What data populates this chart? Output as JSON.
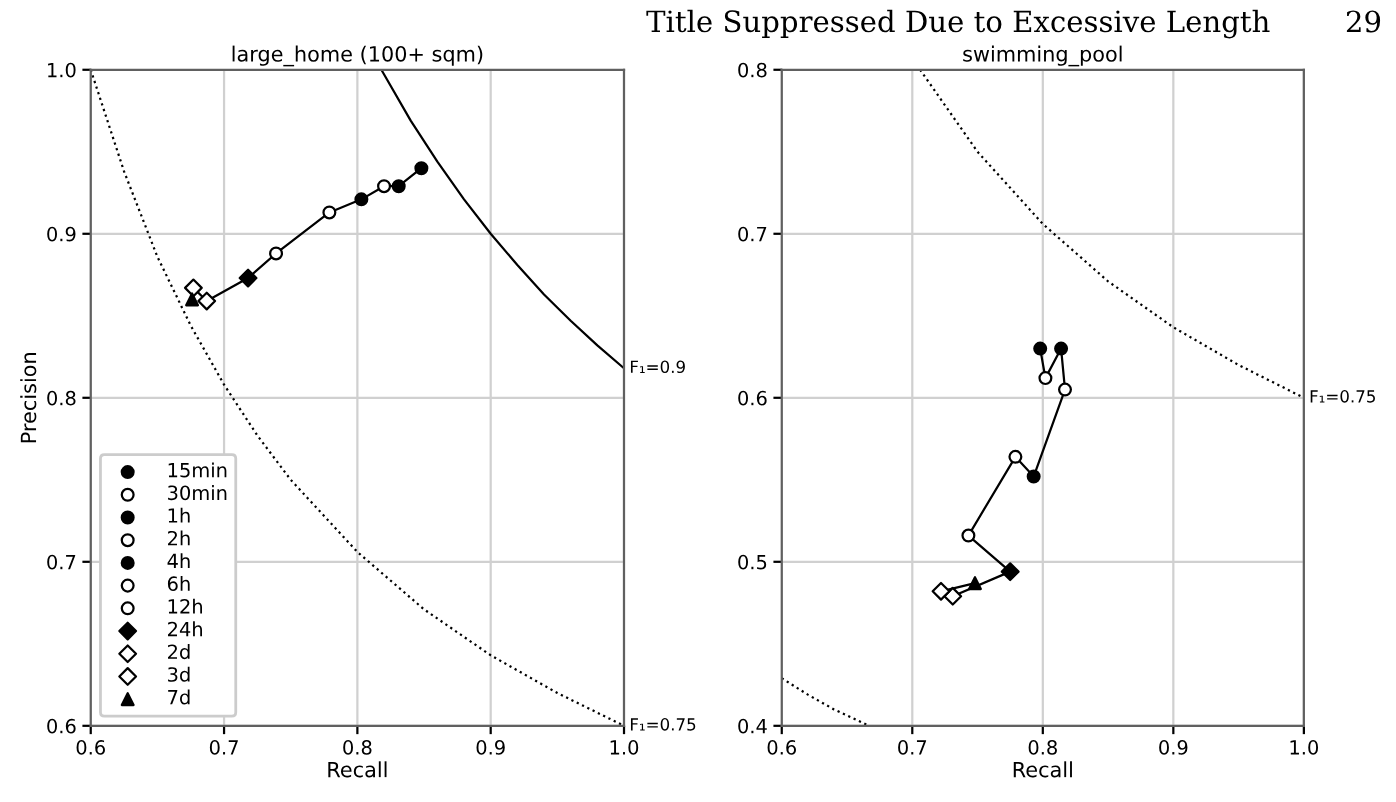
{
  "chart_data": [
    {
      "type": "scatter",
      "title": "large_home (100+ sqm)",
      "xlabel": "Recall",
      "ylabel": "Precision",
      "annotations": [
        "Title Suppressed Due to Excessive Length",
        "29"
      ],
      "xlim": [
        0.6,
        1.0
      ],
      "xticks": [
        0.6,
        0.7,
        0.8,
        0.9,
        {
          "value": 1.0,
          "label": "1.0"
        }
      ],
      "ylim": [
        0.6,
        1.0
      ],
      "yticks": [
        0.6,
        0.7,
        0.8,
        0.9,
        {
          "value": 1.0,
          "label": "1.0"
        }
      ],
      "grid": true,
      "legend": "bottom left",
      "series": [
        {
          "type": "line",
          "name": "F₁=0.9",
          "color": "#000000",
          "line_style": "solid",
          "x": [
            0.818,
            0.84,
            0.86,
            0.88,
            0.9,
            0.92,
            0.94,
            0.96,
            0.98,
            1.0
          ],
          "values": [
            1.0,
            0.969,
            0.944,
            0.921,
            0.9,
            0.881,
            0.863,
            0.847,
            0.832,
            0.818
          ]
        },
        {
          "type": "line",
          "name": "F₁=0.75",
          "color": "#000000",
          "line_style": "dotted",
          "x": [
            0.6,
            0.625,
            0.65,
            0.675,
            0.7,
            0.725,
            0.75,
            0.8,
            0.85,
            0.9,
            0.95,
            1.0
          ],
          "values": [
            1.0,
            0.938,
            0.886,
            0.844,
            0.808,
            0.777,
            0.75,
            0.706,
            0.671,
            0.643,
            0.62,
            0.6
          ]
        },
        {
          "type": "line",
          "color": "#000000",
          "line_style": "solid",
          "x": [
            0.848,
            0.831,
            0.82,
            0.803,
            0.779,
            0.739,
            0.718,
            0.687,
            0.677,
            0.676
          ],
          "values": [
            0.94,
            0.929,
            0.929,
            0.921,
            0.913,
            0.888,
            0.873,
            0.859,
            0.867,
            0.86
          ]
        },
        {
          "name": "15min",
          "color": "#000000",
          "marker": "circle",
          "x": [
            0.848
          ],
          "values": [
            0.94
          ]
        },
        {
          "name": "30min",
          "color": "#ffffff",
          "marker": "circle",
          "x": [
            null
          ],
          "values": [
            null
          ]
        },
        {
          "name": "1h",
          "color": "#000000",
          "marker": "circle",
          "x": [
            0.831
          ],
          "values": [
            0.929
          ]
        },
        {
          "name": "2h",
          "color": "#ffffff",
          "marker": "circle",
          "x": [
            0.82
          ],
          "values": [
            0.929
          ]
        },
        {
          "name": "4h",
          "color": "#000000",
          "marker": "circle",
          "x": [
            0.803
          ],
          "values": [
            0.921
          ]
        },
        {
          "name": "6h",
          "color": "#ffffff",
          "marker": "circle",
          "x": [
            0.779
          ],
          "values": [
            0.913
          ]
        },
        {
          "name": "12h",
          "color": "#ffffff",
          "marker": "circle",
          "x": [
            0.739
          ],
          "values": [
            0.888
          ]
        },
        {
          "name": "24h",
          "color": "#000000",
          "marker": "diamond",
          "x": [
            0.718
          ],
          "values": [
            0.873
          ]
        },
        {
          "name": "2d",
          "color": "#ffffff",
          "marker": "diamond",
          "x": [
            0.687
          ],
          "values": [
            0.859
          ]
        },
        {
          "name": "3d",
          "color": "#ffffff",
          "marker": "diamond",
          "x": [
            0.677
          ],
          "values": [
            0.867
          ]
        },
        {
          "name": "7d",
          "color": "#000000",
          "marker": "triangle",
          "x": [
            0.676
          ],
          "values": [
            0.86
          ]
        }
      ]
    },
    {
      "type": "scatter",
      "title": "swimming_pool",
      "xlabel": "Recall",
      "xlim": [
        0.6,
        1.0
      ],
      "xticks": [
        0.6,
        0.7,
        0.8,
        0.9,
        {
          "value": 1.0,
          "label": "1.0"
        }
      ],
      "ylim": [
        0.4,
        0.8
      ],
      "yticks": [
        0.4,
        0.5,
        0.6,
        0.7,
        0.8
      ],
      "grid": true,
      "series": [
        {
          "type": "line",
          "name": "F₁=0.75",
          "color": "#000000",
          "line_style": "dotted",
          "x": [
            0.706,
            0.75,
            0.8,
            0.85,
            0.9,
            0.95,
            1.0
          ],
          "values": [
            0.8,
            0.75,
            0.706,
            0.671,
            0.643,
            0.62,
            0.6
          ]
        },
        {
          "type": "line",
          "color": "#000000",
          "line_style": "dotted",
          "x": [
            0.6,
            0.62,
            0.64,
            0.667
          ],
          "values": [
            0.429,
            0.419,
            0.41,
            0.4
          ]
        },
        {
          "type": "line",
          "color": "#000000",
          "line_style": "solid",
          "x": [
            0.798,
            0.802,
            0.814,
            0.817,
            0.793,
            0.779,
            0.743,
            0.775,
            0.731,
            0.722,
            0.748
          ],
          "values": [
            0.63,
            0.612,
            0.63,
            0.605,
            0.552,
            0.564,
            0.516,
            0.494,
            0.479,
            0.482,
            0.487
          ]
        },
        {
          "color": "#000000",
          "marker": "circle",
          "x": [
            0.798
          ],
          "values": [
            0.63
          ]
        },
        {
          "color": "#ffffff",
          "marker": "circle",
          "x": [
            0.802
          ],
          "values": [
            0.612
          ]
        },
        {
          "color": "#000000",
          "marker": "circle",
          "x": [
            0.814
          ],
          "values": [
            0.63
          ]
        },
        {
          "color": "#ffffff",
          "marker": "circle",
          "x": [
            0.817
          ],
          "values": [
            0.605
          ]
        },
        {
          "color": "#000000",
          "marker": "circle",
          "x": [
            0.793
          ],
          "values": [
            0.552
          ]
        },
        {
          "color": "#ffffff",
          "marker": "circle",
          "x": [
            0.779
          ],
          "values": [
            0.564
          ]
        },
        {
          "color": "#ffffff",
          "marker": "circle",
          "x": [
            0.743
          ],
          "values": [
            0.516
          ]
        },
        {
          "color": "#000000",
          "marker": "diamond",
          "x": [
            0.775
          ],
          "values": [
            0.494
          ]
        },
        {
          "color": "#ffffff",
          "marker": "diamond",
          "x": [
            0.731
          ],
          "values": [
            0.479
          ]
        },
        {
          "color": "#ffffff",
          "marker": "diamond",
          "x": [
            0.722
          ],
          "values": [
            0.482
          ]
        },
        {
          "color": "#000000",
          "marker": "triangle",
          "x": [
            0.748
          ],
          "values": [
            0.487
          ]
        }
      ]
    }
  ]
}
